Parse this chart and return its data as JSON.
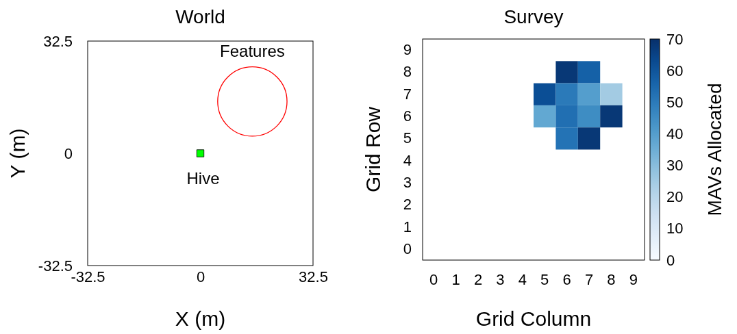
{
  "chart_data": [
    {
      "type": "scatter",
      "title": "World",
      "xlabel": "X (m)",
      "ylabel": "Y (m)",
      "xlim": [
        -32.5,
        32.5
      ],
      "ylim": [
        -32.5,
        32.5
      ],
      "xticks": [
        -32.5,
        0,
        32.5
      ],
      "yticks": [
        -32.5,
        0,
        32.5
      ],
      "grid": false,
      "legend": false,
      "annotations": [
        "Features"
      ],
      "series": [
        {
          "name": "Hive",
          "type": "scatter",
          "color": "#00ff00",
          "marker": "square",
          "x": [
            0
          ],
          "values": [
            0
          ]
        }
      ]
    },
    {
      "type": "heatmap",
      "title": "Survey",
      "xlabel": "Grid Column",
      "ylabel": "Grid Row",
      "clabel": "MAVs Allocated",
      "categories": [
        "0",
        "1",
        "2",
        "3",
        "4",
        "5",
        "6",
        "7",
        "8",
        "9"
      ],
      "y_categories": [
        "9",
        "8",
        "7",
        "6",
        "5",
        "4",
        "3",
        "2",
        "1",
        "0"
      ],
      "clim": [
        0,
        70
      ],
      "cticks": [
        0,
        10,
        20,
        30,
        40,
        50,
        60,
        70
      ],
      "cells": [
        [
          null,
          null,
          null,
          null,
          null,
          null,
          null,
          null,
          null,
          null
        ],
        [
          null,
          null,
          null,
          null,
          null,
          null,
          68,
          57,
          null,
          null
        ],
        [
          null,
          null,
          null,
          null,
          null,
          62,
          50,
          40,
          25,
          null
        ],
        [
          null,
          null,
          null,
          null,
          null,
          37,
          53,
          45,
          68,
          null
        ],
        [
          null,
          null,
          null,
          null,
          null,
          null,
          52,
          68,
          null,
          null
        ],
        [
          null,
          null,
          null,
          null,
          null,
          null,
          null,
          null,
          null,
          null
        ],
        [
          null,
          null,
          null,
          null,
          null,
          null,
          null,
          null,
          null,
          null
        ],
        [
          null,
          null,
          null,
          null,
          null,
          null,
          null,
          null,
          null,
          null
        ],
        [
          null,
          null,
          null,
          null,
          null,
          null,
          null,
          null,
          null,
          null
        ],
        [
          null,
          null,
          null,
          null,
          null,
          null,
          null,
          null,
          null,
          null
        ]
      ]
    }
  ]
}
